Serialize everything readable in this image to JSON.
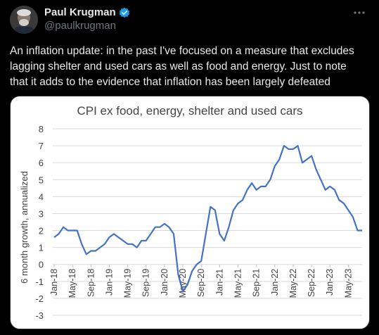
{
  "author": {
    "display_name": "Paul Krugman",
    "handle": "@paulkrugman"
  },
  "post": {
    "text_lines": [
      "An inflation update: in the past I've focused on a measure that excludes",
      "lagging shelter and used cars as well as food and energy. Just to note",
      "that it adds to the evidence that inflation has been largely defeated"
    ]
  },
  "icons": {
    "verified": "verified-badge-icon",
    "more": "more-options-icon"
  },
  "colors": {
    "background": "#000000",
    "text_primary": "#e7e9ea",
    "text_secondary": "#71767b",
    "verified_blue": "#1d9bf0",
    "line": "#4472c4"
  },
  "chart_data": {
    "type": "line",
    "title": "CPI ex food, energy, shelter and used cars",
    "xlabel": "",
    "ylabel": "6 month growth, annualized",
    "ylim": [
      -3,
      8
    ],
    "yticks": [
      8,
      7,
      6,
      5,
      4,
      3,
      2,
      1,
      0,
      -1,
      -2,
      -3
    ],
    "grid": "horizontal",
    "legend": "none",
    "x_tick_labels": [
      "Jan-18",
      "May-18",
      "Sep-18",
      "Jan-19",
      "May-19",
      "Sep-19",
      "Jan-20",
      "May-20",
      "Sep-20",
      "Jan-21",
      "May-21",
      "Sep-21",
      "Jan-22",
      "May-22",
      "Sep-22",
      "Jan-23",
      "May-23"
    ],
    "x_start": "Jan-18",
    "x_step": "1 month",
    "series": [
      {
        "name": "",
        "values": [
          1.6,
          1.8,
          2.2,
          2.0,
          2.0,
          2.0,
          1.2,
          0.6,
          0.8,
          0.8,
          1.0,
          1.2,
          1.6,
          1.8,
          1.6,
          1.4,
          1.2,
          1.2,
          1.0,
          1.4,
          1.4,
          1.8,
          2.2,
          2.2,
          2.4,
          2.2,
          1.8,
          -0.6,
          -1.6,
          -1.2,
          -0.4,
          0.0,
          0.2,
          1.8,
          3.4,
          3.2,
          1.8,
          1.4,
          2.2,
          3.2,
          3.6,
          3.8,
          4.4,
          4.8,
          4.4,
          4.6,
          4.6,
          5.0,
          5.8,
          6.2,
          7.0,
          6.8,
          6.8,
          7.0,
          6.0,
          6.2,
          6.4,
          5.6,
          5.0,
          4.4,
          4.6,
          4.4,
          3.8,
          3.6,
          3.2,
          2.8,
          2.0,
          2.0
        ]
      }
    ]
  }
}
